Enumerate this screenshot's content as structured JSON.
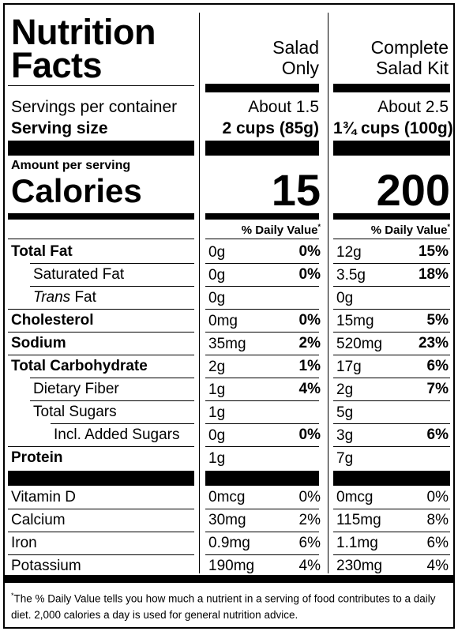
{
  "title_line1": "Nutrition",
  "title_line2": "Facts",
  "columns": [
    {
      "name_line1": "Salad",
      "name_line2": "Only",
      "servings": "About 1.5",
      "serving_size": "2 cups (85g)",
      "calories": "15"
    },
    {
      "name_line1": "Complete",
      "name_line2": "Salad Kit",
      "servings": "About 2.5",
      "serving_size": "1¾ cups (100g)",
      "calories": "200"
    }
  ],
  "servings_label": "Servings per container",
  "serving_size_label": "Serving size",
  "amount_per_serving": "Amount per serving",
  "calories_label": "Calories",
  "daily_value_header": "% Daily Value",
  "daily_value_mark": "*",
  "nutrients": [
    {
      "name": "Total Fat",
      "c1_amount": "0g",
      "c1_dv": "0%",
      "c2_amount": "12g",
      "c2_dv": "15%"
    },
    {
      "name": "Saturated Fat",
      "c1_amount": "0g",
      "c1_dv": "0%",
      "c2_amount": "3.5g",
      "c2_dv": "18%"
    },
    {
      "name_italic": "Trans",
      "name_rest": " Fat",
      "c1_amount": "0g",
      "c1_dv": "",
      "c2_amount": "0g",
      "c2_dv": ""
    },
    {
      "name": "Cholesterol",
      "c1_amount": "0mg",
      "c1_dv": "0%",
      "c2_amount": "15mg",
      "c2_dv": "5%"
    },
    {
      "name": "Sodium",
      "c1_amount": "35mg",
      "c1_dv": "2%",
      "c2_amount": "520mg",
      "c2_dv": "23%"
    },
    {
      "name": "Total Carbohydrate",
      "c1_amount": "2g",
      "c1_dv": "1%",
      "c2_amount": "17g",
      "c2_dv": "6%"
    },
    {
      "name": "Dietary Fiber",
      "c1_amount": "1g",
      "c1_dv": "4%",
      "c2_amount": "2g",
      "c2_dv": "7%"
    },
    {
      "name": "Total Sugars",
      "c1_amount": "1g",
      "c1_dv": "",
      "c2_amount": "5g",
      "c2_dv": ""
    },
    {
      "name": "Incl. Added Sugars",
      "c1_amount": "0g",
      "c1_dv": "0%",
      "c2_amount": "3g",
      "c2_dv": "6%"
    },
    {
      "name": "Protein",
      "c1_amount": "1g",
      "c1_dv": "",
      "c2_amount": "7g",
      "c2_dv": ""
    }
  ],
  "vitamins": [
    {
      "name": "Vitamin D",
      "c1_amount": "0mcg",
      "c1_dv": "0%",
      "c2_amount": "0mcg",
      "c2_dv": "0%"
    },
    {
      "name": "Calcium",
      "c1_amount": "30mg",
      "c1_dv": "2%",
      "c2_amount": "115mg",
      "c2_dv": "8%"
    },
    {
      "name": "Iron",
      "c1_amount": "0.9mg",
      "c1_dv": "6%",
      "c2_amount": "1.1mg",
      "c2_dv": "6%"
    },
    {
      "name": "Potassium",
      "c1_amount": "190mg",
      "c1_dv": "4%",
      "c2_amount": "230mg",
      "c2_dv": "4%"
    }
  ],
  "footnote_mark": "*",
  "footnote_text": "The % Daily Value tells you how much a nutrient in a serving of food contributes to a daily diet. 2,000 calories a day is used for general nutrition advice."
}
